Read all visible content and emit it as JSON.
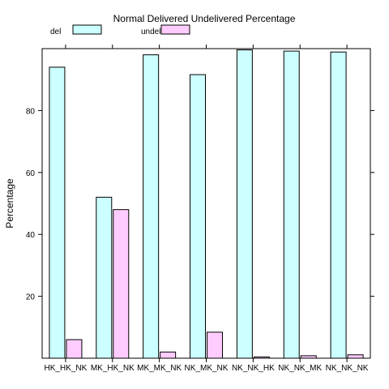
{
  "chart_data": {
    "type": "bar",
    "title": "Normal Delivered Undelivered Percentage",
    "xlabel": "",
    "ylabel": "Percentage",
    "categories": [
      "HK_HK_NK",
      "MK_HK_NK",
      "MK_MK_NK",
      "NK_MK_NK",
      "NK_NK_HK",
      "NK_NK_MK",
      "NK_NK_NK"
    ],
    "series": [
      {
        "name": "del",
        "values": [
          94.0,
          52.0,
          98.0,
          91.6,
          99.6,
          99.2,
          98.9
        ],
        "color": "#ccffff"
      },
      {
        "name": "undel",
        "values": [
          6.0,
          48.0,
          2.0,
          8.4,
          0.4,
          0.8,
          1.1
        ],
        "color": "#ffccff"
      }
    ],
    "ylim": [
      0,
      100
    ],
    "yticks": [
      20,
      40,
      60,
      80
    ],
    "grid": false,
    "legend_position": "top"
  }
}
